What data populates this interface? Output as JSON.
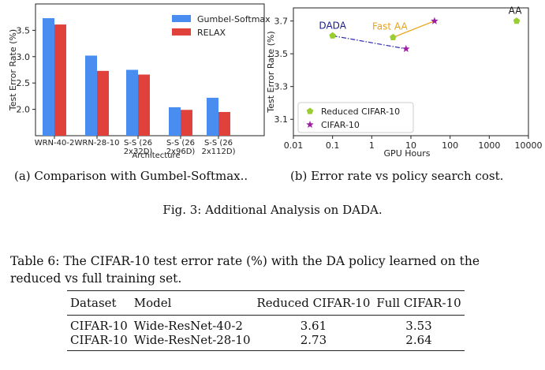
{
  "figure": {
    "caption": "Fig. 3: Additional Analysis on DADA.",
    "left": {
      "caption": "(a) Comparison with Gumbel-Softmax..",
      "chart_data": {
        "type": "bar",
        "title": "",
        "xlabel": "Architecture",
        "ylabel": "Test Error Rate (%)",
        "categories": [
          "WRN-40-2",
          "WRN-28-10",
          "S-S (26 2x32D)",
          "S-S (26 2x96D)",
          "S-S (26 2x112D)"
        ],
        "category_lines": [
          [
            "WRN-40-2"
          ],
          [
            "WRN-28-10"
          ],
          [
            "S-S (26",
            "2x32D)"
          ],
          [
            "S-S (26",
            "2x96D)"
          ],
          [
            "S-S (26",
            "2x112D)"
          ]
        ],
        "series": [
          {
            "name": "Gumbel-Softmax",
            "color": "#4a8df0",
            "values": [
              3.73,
              3.02,
              2.75,
              2.04,
              2.22
            ]
          },
          {
            "name": "RELAX",
            "color": "#e0413a",
            "values": [
              3.61,
              2.73,
              2.66,
              1.99,
              1.95
            ]
          }
        ],
        "ylim": [
          1.5,
          4.0
        ],
        "yticks": [
          2.0,
          2.5,
          3.0,
          3.5
        ],
        "ytick_labels": [
          "2.0",
          "2.5",
          "3.0",
          "3.5"
        ],
        "legend": "top-right",
        "grid": false
      }
    },
    "right": {
      "caption": "(b) Error rate vs policy search cost.",
      "chart_data": {
        "type": "scatter",
        "title": "",
        "xlabel": "GPU Hours",
        "ylabel": "Test Error Rate (%)",
        "xscale": "log",
        "xlim": [
          0.01,
          10000
        ],
        "ylim": [
          3.0,
          3.78
        ],
        "xticks": [
          0.01,
          0.1,
          1,
          10,
          100,
          1000,
          10000
        ],
        "xtick_labels": [
          "0.01",
          "0.1",
          "1",
          "10",
          "100",
          "1000",
          "10000"
        ],
        "yticks": [
          3.1,
          3.3,
          3.5,
          3.7
        ],
        "ytick_labels": [
          "3.1",
          "3.3",
          "3.5",
          "3.7"
        ],
        "series": [
          {
            "name": "Reduced CIFAR-10",
            "marker": "pentagon",
            "color": "#9acd32",
            "points": [
              {
                "label": "DADA",
                "x": 0.1,
                "y": 3.61
              },
              {
                "label": "Fast AA",
                "x": 3.5,
                "y": 3.6
              },
              {
                "label": "AA",
                "x": 5000,
                "y": 3.7
              }
            ]
          },
          {
            "name": "CIFAR-10",
            "marker": "star",
            "color": "#9b1fa0",
            "points": [
              {
                "label": "DADA",
                "x": 7.5,
                "y": 3.53
              },
              {
                "label": "Fast AA",
                "x": 40,
                "y": 3.7
              }
            ]
          }
        ],
        "annotations": [
          {
            "text": "DADA",
            "color": "#1a1a8c"
          },
          {
            "text": "Fast AA",
            "color": "#e8a317"
          },
          {
            "text": "AA",
            "color": "#111111"
          }
        ],
        "links": [
          {
            "from": "DADA",
            "color": "#2a2ab0",
            "style": "dashdot"
          },
          {
            "from": "Fast AA",
            "color": "#e8a317",
            "style": "solid"
          }
        ],
        "legend": "bottom-left",
        "grid": false
      }
    }
  },
  "table": {
    "caption_line1": "Table 6: The CIFAR-10 test error rate (%) with the DA policy learned on the",
    "caption_line2": "reduced vs full training set.",
    "headers": [
      "Dataset",
      "Model",
      "Reduced CIFAR-10",
      "Full CIFAR-10"
    ],
    "rows": [
      [
        "CIFAR-10",
        "Wide-ResNet-40-2",
        "3.61",
        "3.53"
      ],
      [
        "CIFAR-10",
        "Wide-ResNet-28-10",
        "2.73",
        "2.64"
      ]
    ]
  }
}
